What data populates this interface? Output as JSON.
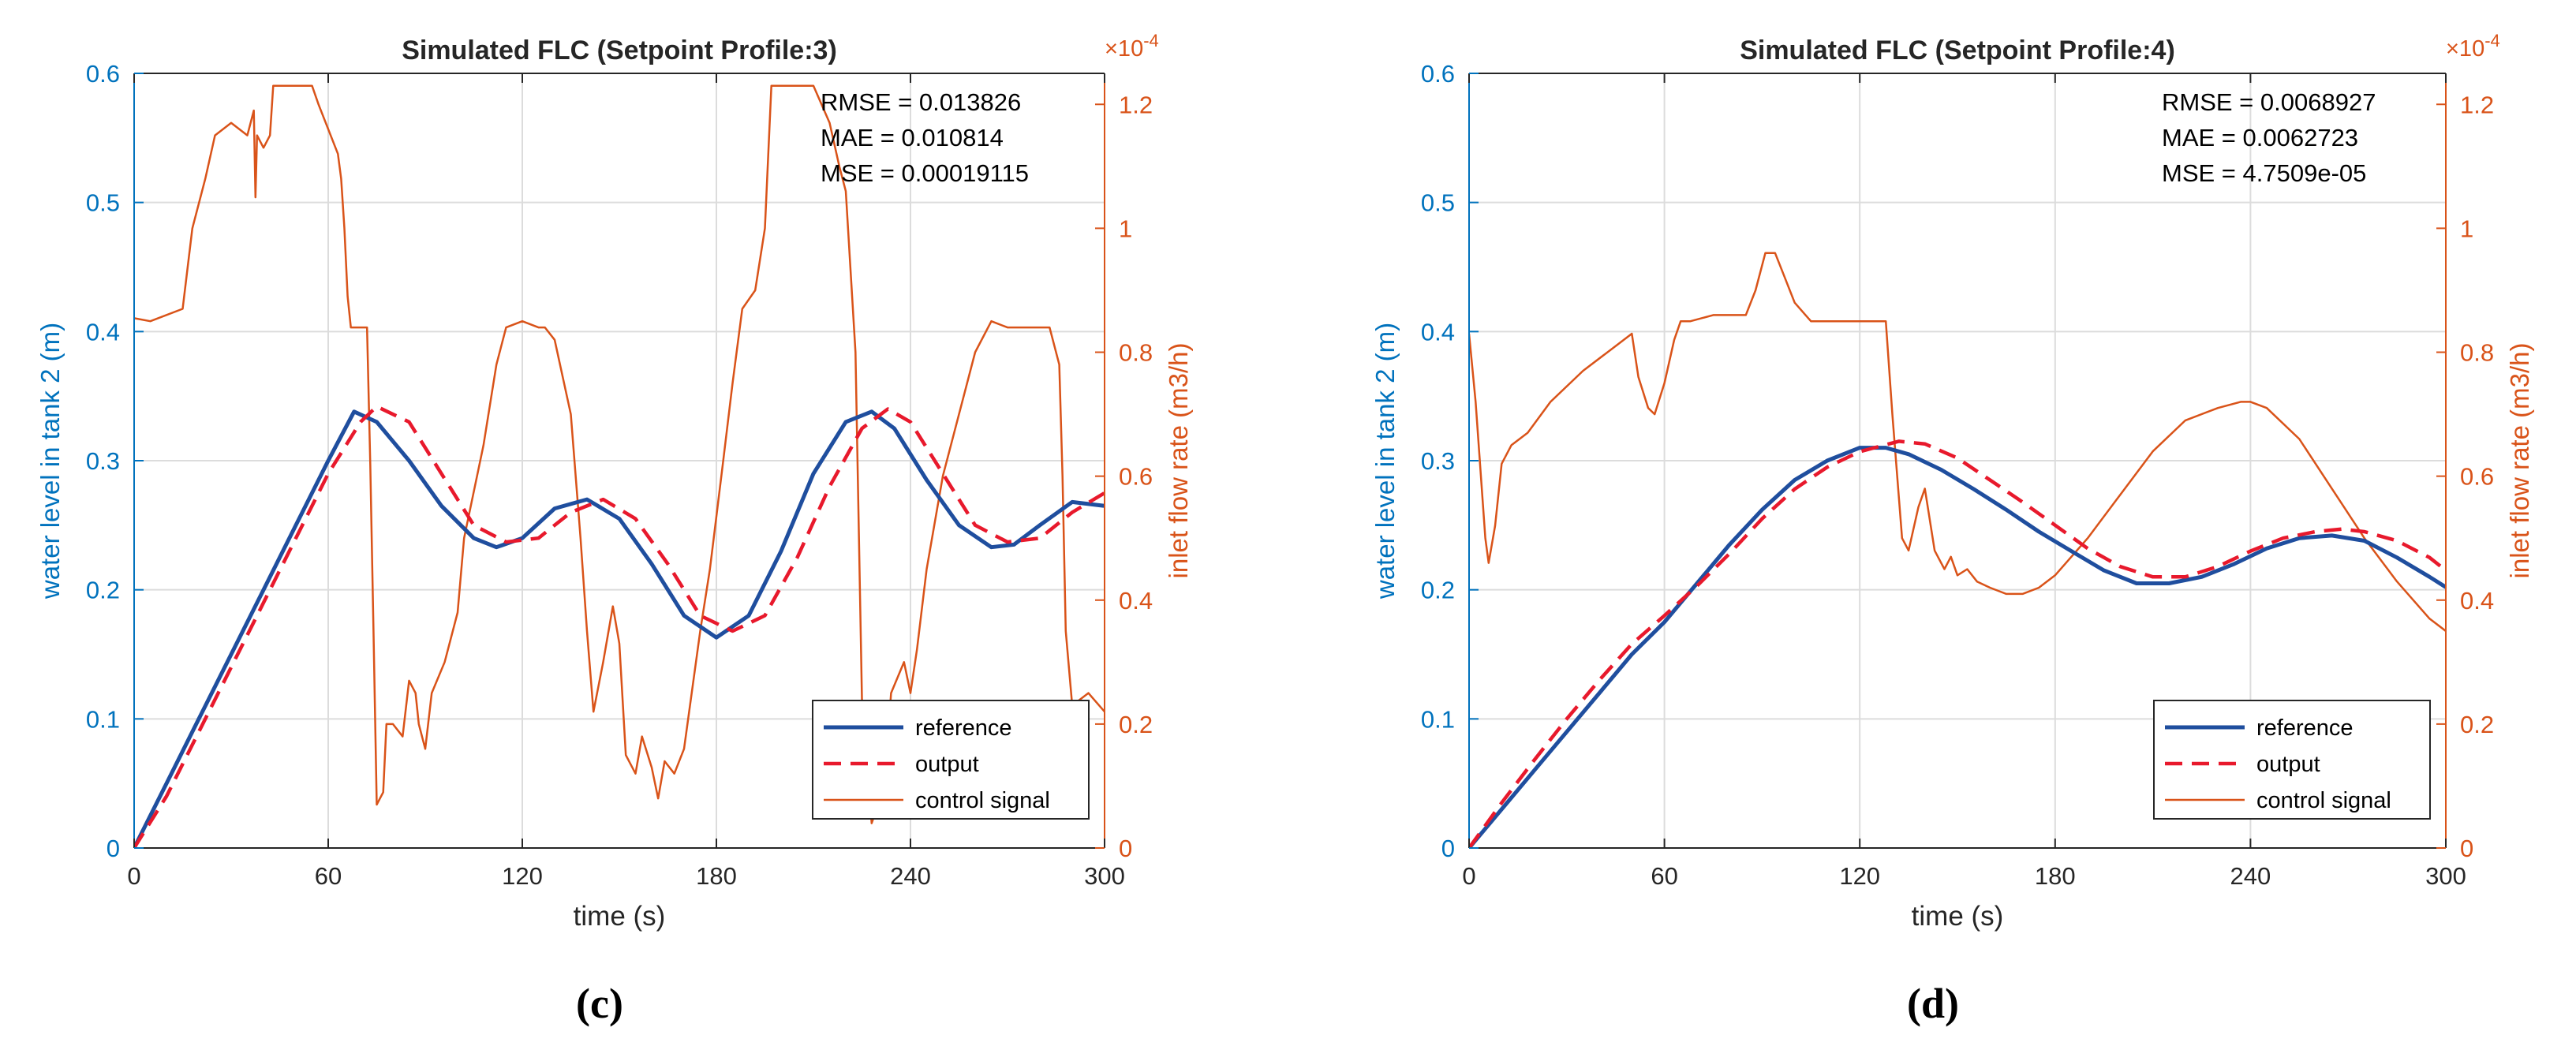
{
  "chart_data": [
    {
      "type": "line",
      "title": "Simulated FLC (Setpoint Profile:3)",
      "panel_label": "(c)",
      "xlabel": "time (s)",
      "ylabel_left": "water level in tank 2 (m)",
      "ylabel_right": "inlet flow rate (m3/h)",
      "right_axis_exponent": "×10",
      "right_axis_exponent_power": "-4",
      "xlim": [
        0,
        300
      ],
      "ylim_left": [
        0,
        0.6
      ],
      "ylim_right": [
        0,
        1.25
      ],
      "x_ticks": [
        "0",
        "60",
        "120",
        "180",
        "240",
        "300"
      ],
      "y_ticks_left": [
        "0",
        "0.1",
        "0.2",
        "0.3",
        "0.4",
        "0.5",
        "0.6"
      ],
      "y_ticks_right": [
        "0",
        "0.2",
        "0.4",
        "0.6",
        "0.8",
        "1",
        "1.2"
      ],
      "grid": true,
      "stats": [
        "RMSE = 0.013826",
        "MAE = 0.010814",
        "MSE = 0.00019115"
      ],
      "legend": {
        "position": "bottom-right",
        "entries": [
          {
            "key": "reference",
            "label": "reference"
          },
          {
            "key": "output",
            "label": "output"
          },
          {
            "key": "control",
            "label": "control signal"
          }
        ]
      },
      "series": [
        {
          "name": "reference",
          "axis": "left",
          "color": "#1F4E9E",
          "style": "solid",
          "x": [
            0,
            10,
            20,
            30,
            40,
            50,
            60,
            68,
            75,
            85,
            95,
            105,
            112,
            120,
            130,
            140,
            150,
            160,
            170,
            180,
            190,
            200,
            210,
            220,
            228,
            235,
            245,
            255,
            265,
            272,
            280,
            290,
            300
          ],
          "y": [
            0,
            0.05,
            0.1,
            0.15,
            0.2,
            0.25,
            0.3,
            0.338,
            0.33,
            0.3,
            0.265,
            0.24,
            0.233,
            0.24,
            0.263,
            0.27,
            0.255,
            0.22,
            0.18,
            0.163,
            0.18,
            0.23,
            0.29,
            0.33,
            0.338,
            0.325,
            0.285,
            0.25,
            0.233,
            0.235,
            0.25,
            0.268,
            0.265
          ]
        },
        {
          "name": "output",
          "axis": "left",
          "color": "#E8192C",
          "style": "dashed",
          "x": [
            0,
            10,
            20,
            30,
            40,
            50,
            60,
            70,
            75,
            85,
            95,
            105,
            115,
            125,
            135,
            145,
            155,
            165,
            175,
            185,
            195,
            205,
            215,
            225,
            233,
            240,
            250,
            260,
            270,
            280,
            290,
            300
          ],
          "y": [
            0,
            0.04,
            0.09,
            0.14,
            0.19,
            0.24,
            0.29,
            0.33,
            0.342,
            0.33,
            0.29,
            0.25,
            0.237,
            0.24,
            0.26,
            0.27,
            0.255,
            0.22,
            0.18,
            0.168,
            0.18,
            0.225,
            0.28,
            0.325,
            0.34,
            0.33,
            0.29,
            0.25,
            0.237,
            0.24,
            0.26,
            0.275
          ]
        },
        {
          "name": "control signal",
          "axis": "right",
          "color": "#D95319",
          "style": "solid",
          "x": [
            0,
            5,
            15,
            18,
            22,
            25,
            30,
            35,
            37,
            37.5,
            38,
            40,
            42,
            43,
            45,
            55,
            57,
            63,
            64,
            65,
            66,
            67,
            68,
            70,
            72,
            73,
            74,
            75,
            77,
            78,
            80,
            83,
            85,
            87,
            88,
            90,
            92,
            96,
            100,
            102,
            108,
            112,
            115,
            120,
            125,
            127,
            130,
            135,
            138,
            140,
            142,
            145,
            148,
            150,
            152,
            155,
            157,
            160,
            162,
            164,
            167,
            170,
            175,
            178,
            182,
            185,
            188,
            192,
            195,
            197,
            200,
            203,
            205,
            210,
            215,
            218,
            220,
            223,
            225,
            228,
            232,
            234,
            238,
            240,
            242,
            245,
            250,
            255,
            260,
            265,
            270,
            275,
            280,
            283,
            286,
            287,
            288,
            290,
            295,
            300
          ],
          "y": [
            0.855,
            0.85,
            0.87,
            1.0,
            1.08,
            1.15,
            1.17,
            1.15,
            1.19,
            1.05,
            1.15,
            1.13,
            1.15,
            1.23,
            1.23,
            1.23,
            1.2,
            1.12,
            1.08,
            1.0,
            0.89,
            0.84,
            0.84,
            0.84,
            0.84,
            0.62,
            0.35,
            0.07,
            0.09,
            0.2,
            0.2,
            0.18,
            0.27,
            0.25,
            0.2,
            0.16,
            0.25,
            0.3,
            0.38,
            0.5,
            0.65,
            0.78,
            0.84,
            0.85,
            0.84,
            0.84,
            0.82,
            0.7,
            0.5,
            0.35,
            0.22,
            0.3,
            0.39,
            0.33,
            0.15,
            0.12,
            0.18,
            0.13,
            0.08,
            0.14,
            0.12,
            0.16,
            0.35,
            0.45,
            0.62,
            0.75,
            0.87,
            0.9,
            1.0,
            1.23,
            1.23,
            1.23,
            1.23,
            1.23,
            1.17,
            1.1,
            1.06,
            0.8,
            0.24,
            0.04,
            0.1,
            0.25,
            0.3,
            0.25,
            0.32,
            0.45,
            0.6,
            0.7,
            0.8,
            0.85,
            0.84,
            0.84,
            0.84,
            0.84,
            0.78,
            0.6,
            0.35,
            0.23,
            0.25,
            0.22
          ]
        }
      ]
    },
    {
      "type": "line",
      "title": "Simulated FLC (Setpoint Profile:4)",
      "panel_label": "(d)",
      "xlabel": "time (s)",
      "ylabel_left": "water level in tank 2 (m)",
      "ylabel_right": "inlet flow rate (m3/h)",
      "right_axis_exponent": "×10",
      "right_axis_exponent_power": "-4",
      "xlim": [
        0,
        300
      ],
      "ylim_left": [
        0,
        0.6
      ],
      "ylim_right": [
        0,
        1.25
      ],
      "x_ticks": [
        "0",
        "60",
        "120",
        "180",
        "240",
        "300"
      ],
      "y_ticks_left": [
        "0",
        "0.1",
        "0.2",
        "0.3",
        "0.4",
        "0.5",
        "0.6"
      ],
      "y_ticks_right": [
        "0",
        "0.2",
        "0.4",
        "0.6",
        "0.8",
        "1",
        "1.2"
      ],
      "grid": true,
      "stats": [
        "RMSE = 0.0068927",
        "MAE = 0.0062723",
        "MSE = 4.7509e-05"
      ],
      "legend": {
        "position": "bottom-right",
        "entries": [
          {
            "key": "reference",
            "label": "reference"
          },
          {
            "key": "output",
            "label": "output"
          },
          {
            "key": "control",
            "label": "control signal"
          }
        ]
      },
      "series": [
        {
          "name": "reference",
          "axis": "left",
          "color": "#1F4E9E",
          "style": "solid",
          "x": [
            0,
            10,
            20,
            30,
            40,
            50,
            60,
            70,
            80,
            90,
            100,
            110,
            120,
            128,
            135,
            145,
            155,
            165,
            175,
            185,
            195,
            205,
            215,
            225,
            235,
            245,
            255,
            265,
            275,
            285,
            295,
            300
          ],
          "y": [
            0,
            0.03,
            0.06,
            0.09,
            0.12,
            0.15,
            0.175,
            0.205,
            0.235,
            0.262,
            0.285,
            0.3,
            0.31,
            0.31,
            0.305,
            0.293,
            0.278,
            0.262,
            0.245,
            0.23,
            0.215,
            0.205,
            0.205,
            0.21,
            0.22,
            0.232,
            0.24,
            0.242,
            0.238,
            0.225,
            0.21,
            0.202
          ]
        },
        {
          "name": "output",
          "axis": "left",
          "color": "#E8192C",
          "style": "dashed",
          "x": [
            0,
            10,
            20,
            30,
            40,
            50,
            60,
            70,
            80,
            90,
            100,
            110,
            120,
            132,
            140,
            150,
            160,
            170,
            180,
            190,
            200,
            210,
            220,
            230,
            240,
            250,
            260,
            268,
            275,
            285,
            295,
            300
          ],
          "y": [
            0,
            0.035,
            0.068,
            0.1,
            0.13,
            0.158,
            0.18,
            0.203,
            0.228,
            0.255,
            0.278,
            0.295,
            0.307,
            0.315,
            0.313,
            0.302,
            0.285,
            0.268,
            0.25,
            0.232,
            0.218,
            0.21,
            0.21,
            0.218,
            0.23,
            0.24,
            0.245,
            0.247,
            0.245,
            0.238,
            0.225,
            0.215
          ]
        },
        {
          "name": "control signal",
          "axis": "right",
          "color": "#D95319",
          "style": "solid",
          "x": [
            0,
            2,
            5,
            6,
            8,
            10,
            13,
            18,
            25,
            35,
            45,
            50,
            52,
            55,
            57,
            60,
            63,
            65,
            68,
            75,
            80,
            85,
            88,
            91,
            94,
            97,
            100,
            105,
            108,
            112,
            120,
            128,
            130,
            133,
            135,
            138,
            140,
            143,
            146,
            148,
            150,
            153,
            156,
            160,
            165,
            170,
            175,
            180,
            190,
            200,
            210,
            220,
            230,
            237,
            240,
            245,
            255,
            265,
            275,
            285,
            295,
            300
          ],
          "y": [
            0.83,
            0.72,
            0.5,
            0.46,
            0.52,
            0.62,
            0.65,
            0.67,
            0.72,
            0.77,
            0.81,
            0.83,
            0.76,
            0.71,
            0.7,
            0.75,
            0.82,
            0.85,
            0.85,
            0.86,
            0.86,
            0.86,
            0.9,
            0.96,
            0.96,
            0.92,
            0.88,
            0.85,
            0.85,
            0.85,
            0.85,
            0.85,
            0.7,
            0.5,
            0.48,
            0.55,
            0.58,
            0.48,
            0.45,
            0.47,
            0.44,
            0.45,
            0.43,
            0.42,
            0.41,
            0.41,
            0.42,
            0.44,
            0.5,
            0.57,
            0.64,
            0.69,
            0.71,
            0.72,
            0.72,
            0.71,
            0.66,
            0.58,
            0.5,
            0.43,
            0.37,
            0.35
          ]
        }
      ]
    }
  ]
}
